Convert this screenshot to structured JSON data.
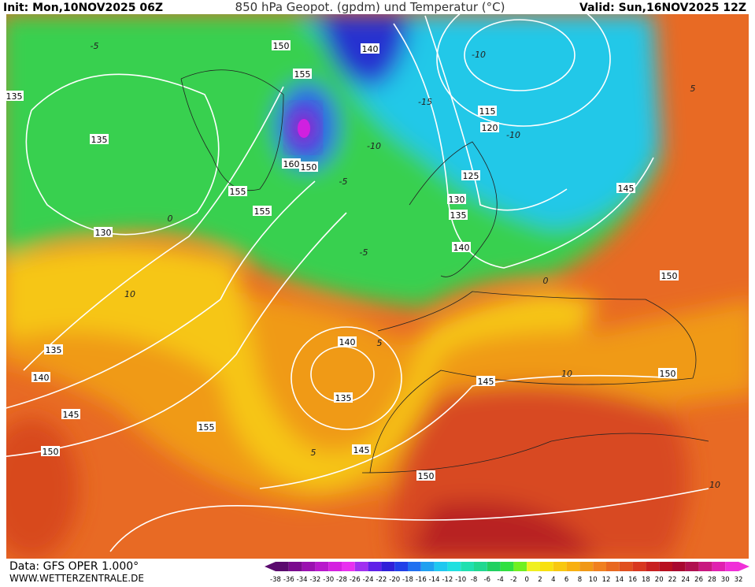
{
  "header": {
    "init": "Init: Mon,10NOV2025 06Z",
    "title": "850 hPa Geopot. (gpdm) und Temperatur (°C)",
    "valid": "Valid: Sun,16NOV2025 12Z"
  },
  "map": {
    "height_labels": [
      135,
      135,
      130,
      135,
      140,
      145,
      150,
      155,
      140,
      135,
      145,
      150,
      145,
      150,
      150,
      145,
      140,
      135,
      130,
      125,
      120,
      115,
      140,
      150,
      155,
      160,
      150,
      155,
      155
    ],
    "temperature_labels": [
      -5,
      -10,
      -15,
      -10,
      -5,
      0,
      -10,
      -5,
      0,
      10,
      5,
      5,
      10,
      10,
      5
    ]
  },
  "footer": {
    "source": "Data: GFS OPER 1.000°",
    "site": "WWW.WETTERZENTRALE.DE"
  },
  "legend": {
    "labels": [
      -38,
      -36,
      -34,
      -32,
      -30,
      -28,
      -26,
      -24,
      -22,
      -20,
      -18,
      -16,
      -14,
      -12,
      -10,
      -8,
      -6,
      -4,
      -2,
      0,
      2,
      4,
      6,
      8,
      10,
      12,
      14,
      16,
      18,
      20,
      22,
      24,
      26,
      28,
      30,
      32
    ],
    "colors": [
      "#5a0a6e",
      "#7a0a8e",
      "#9a10b0",
      "#b818cc",
      "#d420e0",
      "#e830f0",
      "#a030f0",
      "#6020e8",
      "#3020d8",
      "#2040e8",
      "#2070f0",
      "#20a0f0",
      "#20c8f0",
      "#20e0e0",
      "#20e0b0",
      "#20d890",
      "#20d060",
      "#30e040",
      "#70f020",
      "#f0f020",
      "#f8e010",
      "#f8c810",
      "#f8b010",
      "#f09818",
      "#f08020",
      "#e86820",
      "#e05020",
      "#d83820",
      "#c82020",
      "#b81020",
      "#a80830",
      "#b01050",
      "#c81880",
      "#e020b0",
      "#f030d8"
    ]
  }
}
